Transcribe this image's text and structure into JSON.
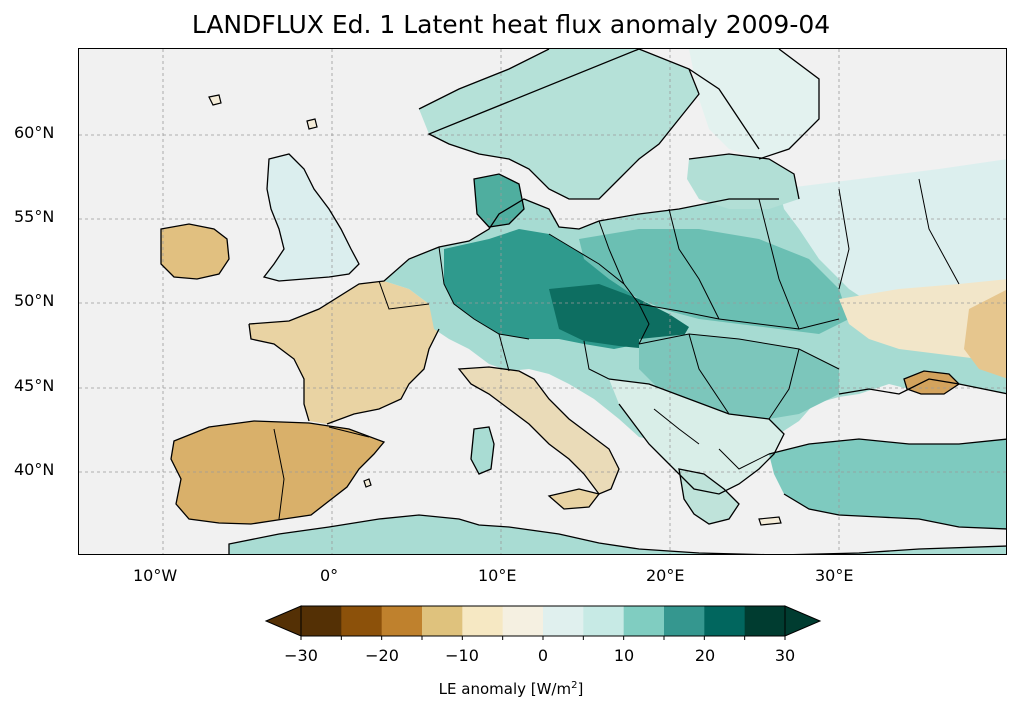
{
  "title": "LANDFLUX Ed. 1 Latent heat flux anomaly 2009-04",
  "map": {
    "projection": "PlateCarree",
    "lon_range": [
      -15,
      40
    ],
    "lat_range": [
      35,
      65
    ],
    "lat_ticks": [
      "60°N",
      "55°N",
      "50°N",
      "45°N",
      "40°N"
    ],
    "lon_ticks": [
      "10°W",
      "0°",
      "10°E",
      "20°E",
      "30°E"
    ],
    "ocean_color": "#f1f1f1",
    "regions": [
      {
        "name": "Iberian Peninsula",
        "anomaly": -20
      },
      {
        "name": "France southwest",
        "anomaly": -10
      },
      {
        "name": "Ireland",
        "anomaly": -10
      },
      {
        "name": "Germany",
        "anomaly": 20
      },
      {
        "name": "Czech Republic",
        "anomaly": 30
      },
      {
        "name": "Poland",
        "anomaly": 15
      },
      {
        "name": "Scandinavia",
        "anomaly": 10
      },
      {
        "name": "Turkey",
        "anomaly": 10
      },
      {
        "name": "Ukraine east",
        "anomaly": -5
      },
      {
        "name": "Crimea",
        "anomaly": -15
      }
    ]
  },
  "colorbar": {
    "label_main": "LE anomaly [W/m",
    "label_sup": "2",
    "label_end": "]",
    "ticks": [
      "−30",
      "−20",
      "−10",
      "0",
      "10",
      "20",
      "30"
    ],
    "bounds": [
      -30,
      -25,
      -20,
      -15,
      -10,
      -5,
      0,
      5,
      10,
      15,
      20,
      25,
      30
    ],
    "colors": [
      "#543005",
      "#8c510a",
      "#bf812d",
      "#dfc27d",
      "#f6e8c3",
      "#f5f0e1",
      "#e0f0ee",
      "#c7eae5",
      "#80cdc1",
      "#35978f",
      "#01665e",
      "#003c30"
    ],
    "under_color": "#543005",
    "over_color": "#003c30"
  }
}
